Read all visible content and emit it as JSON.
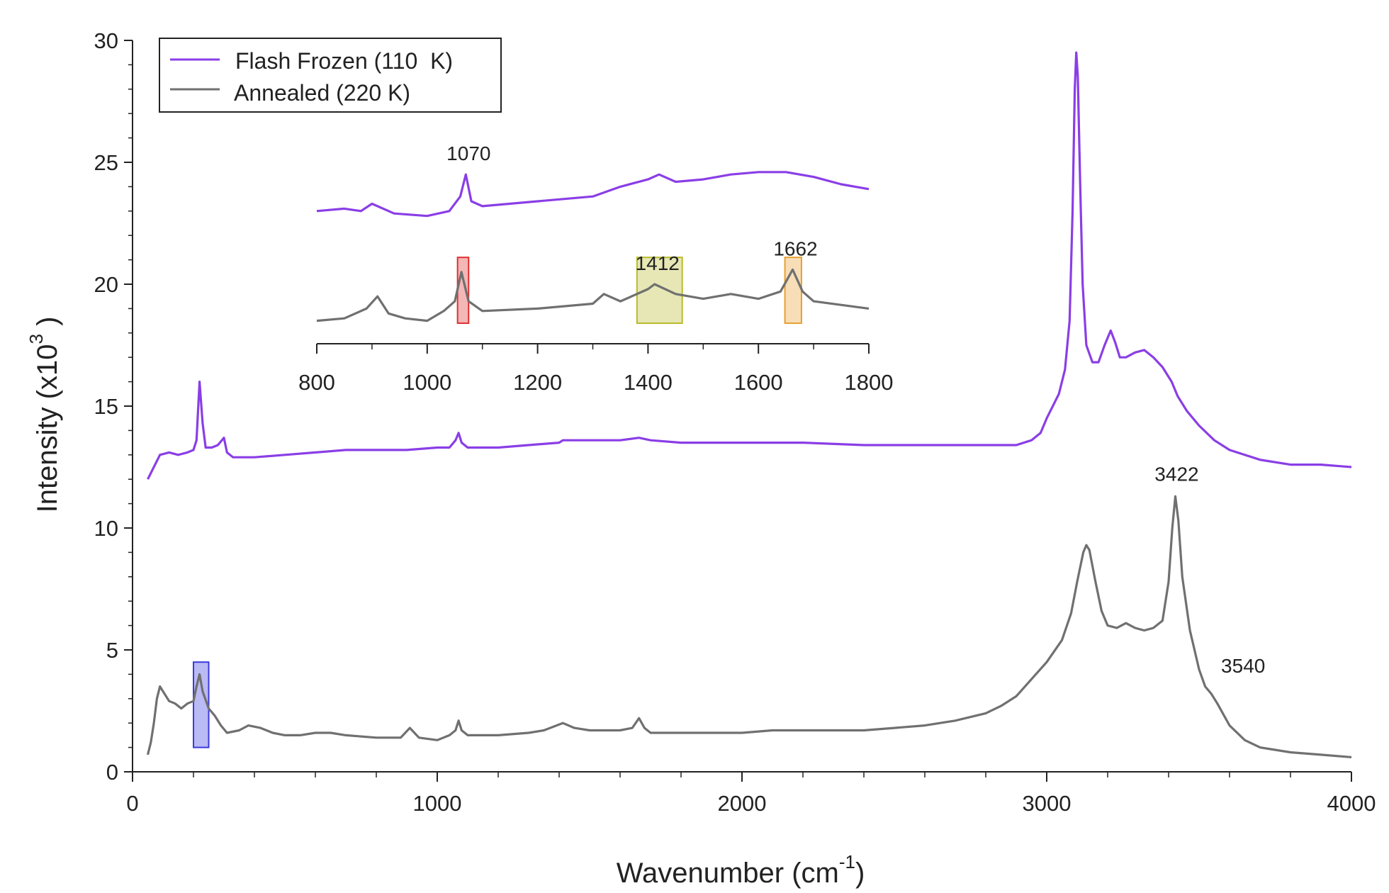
{
  "chart_data": {
    "type": "line",
    "title": "",
    "xlabel": "Wavenumber (cm",
    "xlabel_sup": "-1",
    "xlabel_close": ")",
    "ylabel": "Intensity (x10",
    "ylabel_sup": "3",
    "ylabel_close": " )",
    "xlim": [
      0,
      4000
    ],
    "ylim": [
      0,
      30
    ],
    "x_ticks": [
      0,
      1000,
      2000,
      3000,
      4000
    ],
    "x_tick_labels": [
      "0",
      "1000",
      "2000",
      "3000",
      "4000"
    ],
    "y_ticks": [
      0,
      5,
      10,
      15,
      20,
      25,
      30
    ],
    "y_tick_labels": [
      "0",
      "5",
      "10",
      "15",
      "20",
      "25",
      "30"
    ],
    "grid": false,
    "legend_position": "top-left",
    "series": [
      {
        "name": "Flash Frozen (110  K)",
        "color": "#8a3ee6",
        "points": [
          [
            50,
            12.0
          ],
          [
            70,
            12.5
          ],
          [
            90,
            13.0
          ],
          [
            120,
            13.1
          ],
          [
            150,
            13.0
          ],
          [
            180,
            13.1
          ],
          [
            200,
            13.2
          ],
          [
            210,
            13.6
          ],
          [
            220,
            16.0
          ],
          [
            230,
            14.3
          ],
          [
            240,
            13.3
          ],
          [
            260,
            13.3
          ],
          [
            280,
            13.4
          ],
          [
            300,
            13.7
          ],
          [
            310,
            13.1
          ],
          [
            330,
            12.9
          ],
          [
            400,
            12.9
          ],
          [
            500,
            13.0
          ],
          [
            600,
            13.1
          ],
          [
            700,
            13.2
          ],
          [
            800,
            13.2
          ],
          [
            900,
            13.2
          ],
          [
            1000,
            13.3
          ],
          [
            1040,
            13.3
          ],
          [
            1060,
            13.6
          ],
          [
            1070,
            13.9
          ],
          [
            1080,
            13.5
          ],
          [
            1100,
            13.3
          ],
          [
            1200,
            13.3
          ],
          [
            1300,
            13.4
          ],
          [
            1400,
            13.5
          ],
          [
            1412,
            13.6
          ],
          [
            1450,
            13.6
          ],
          [
            1500,
            13.6
          ],
          [
            1600,
            13.6
          ],
          [
            1662,
            13.7
          ],
          [
            1700,
            13.6
          ],
          [
            1800,
            13.5
          ],
          [
            2000,
            13.5
          ],
          [
            2200,
            13.5
          ],
          [
            2400,
            13.4
          ],
          [
            2600,
            13.4
          ],
          [
            2800,
            13.4
          ],
          [
            2900,
            13.4
          ],
          [
            2950,
            13.6
          ],
          [
            2980,
            13.9
          ],
          [
            3000,
            14.5
          ],
          [
            3020,
            15.0
          ],
          [
            3040,
            15.5
          ],
          [
            3060,
            16.5
          ],
          [
            3075,
            18.5
          ],
          [
            3085,
            23.0
          ],
          [
            3092,
            28.0
          ],
          [
            3097,
            29.5
          ],
          [
            3102,
            28.5
          ],
          [
            3110,
            24.0
          ],
          [
            3118,
            20.0
          ],
          [
            3130,
            17.5
          ],
          [
            3150,
            16.8
          ],
          [
            3170,
            16.8
          ],
          [
            3190,
            17.5
          ],
          [
            3210,
            18.1
          ],
          [
            3225,
            17.6
          ],
          [
            3240,
            17.0
          ],
          [
            3260,
            17.0
          ],
          [
            3290,
            17.2
          ],
          [
            3320,
            17.3
          ],
          [
            3350,
            17.0
          ],
          [
            3380,
            16.6
          ],
          [
            3410,
            16.0
          ],
          [
            3430,
            15.4
          ],
          [
            3460,
            14.8
          ],
          [
            3500,
            14.2
          ],
          [
            3550,
            13.6
          ],
          [
            3600,
            13.2
          ],
          [
            3700,
            12.8
          ],
          [
            3800,
            12.6
          ],
          [
            3900,
            12.6
          ],
          [
            4000,
            12.5
          ]
        ]
      },
      {
        "name": "Annealed (220 K)",
        "color": "#707070",
        "points": [
          [
            50,
            0.7
          ],
          [
            60,
            1.2
          ],
          [
            70,
            2.0
          ],
          [
            80,
            3.0
          ],
          [
            90,
            3.5
          ],
          [
            100,
            3.3
          ],
          [
            120,
            2.9
          ],
          [
            140,
            2.8
          ],
          [
            160,
            2.6
          ],
          [
            180,
            2.8
          ],
          [
            200,
            2.9
          ],
          [
            210,
            3.5
          ],
          [
            220,
            4.0
          ],
          [
            230,
            3.3
          ],
          [
            250,
            2.6
          ],
          [
            270,
            2.3
          ],
          [
            290,
            1.9
          ],
          [
            310,
            1.6
          ],
          [
            350,
            1.7
          ],
          [
            380,
            1.9
          ],
          [
            420,
            1.8
          ],
          [
            460,
            1.6
          ],
          [
            500,
            1.5
          ],
          [
            550,
            1.5
          ],
          [
            600,
            1.6
          ],
          [
            650,
            1.6
          ],
          [
            700,
            1.5
          ],
          [
            800,
            1.4
          ],
          [
            880,
            1.4
          ],
          [
            910,
            1.8
          ],
          [
            940,
            1.4
          ],
          [
            1000,
            1.3
          ],
          [
            1040,
            1.5
          ],
          [
            1060,
            1.7
          ],
          [
            1070,
            2.1
          ],
          [
            1080,
            1.7
          ],
          [
            1100,
            1.5
          ],
          [
            1200,
            1.5
          ],
          [
            1300,
            1.6
          ],
          [
            1350,
            1.7
          ],
          [
            1412,
            2.0
          ],
          [
            1450,
            1.8
          ],
          [
            1500,
            1.7
          ],
          [
            1600,
            1.7
          ],
          [
            1640,
            1.8
          ],
          [
            1662,
            2.2
          ],
          [
            1680,
            1.8
          ],
          [
            1700,
            1.6
          ],
          [
            1800,
            1.6
          ],
          [
            1900,
            1.6
          ],
          [
            2000,
            1.6
          ],
          [
            2100,
            1.7
          ],
          [
            2200,
            1.7
          ],
          [
            2300,
            1.7
          ],
          [
            2400,
            1.7
          ],
          [
            2500,
            1.8
          ],
          [
            2600,
            1.9
          ],
          [
            2700,
            2.1
          ],
          [
            2800,
            2.4
          ],
          [
            2850,
            2.7
          ],
          [
            2900,
            3.1
          ],
          [
            2950,
            3.8
          ],
          [
            3000,
            4.5
          ],
          [
            3050,
            5.4
          ],
          [
            3080,
            6.5
          ],
          [
            3100,
            7.8
          ],
          [
            3120,
            9.0
          ],
          [
            3130,
            9.3
          ],
          [
            3140,
            9.1
          ],
          [
            3160,
            7.8
          ],
          [
            3180,
            6.6
          ],
          [
            3200,
            6.0
          ],
          [
            3230,
            5.9
          ],
          [
            3260,
            6.1
          ],
          [
            3290,
            5.9
          ],
          [
            3320,
            5.8
          ],
          [
            3350,
            5.9
          ],
          [
            3380,
            6.2
          ],
          [
            3400,
            7.8
          ],
          [
            3412,
            10.0
          ],
          [
            3422,
            11.3
          ],
          [
            3432,
            10.3
          ],
          [
            3445,
            8.0
          ],
          [
            3470,
            5.8
          ],
          [
            3500,
            4.2
          ],
          [
            3520,
            3.5
          ],
          [
            3540,
            3.2
          ],
          [
            3560,
            2.8
          ],
          [
            3600,
            1.9
          ],
          [
            3650,
            1.3
          ],
          [
            3700,
            1.0
          ],
          [
            3800,
            0.8
          ],
          [
            3900,
            0.7
          ],
          [
            4000,
            0.6
          ]
        ]
      }
    ],
    "annotations": [
      {
        "text": "3422",
        "x": 3422,
        "y": 11.3
      },
      {
        "text": "3540",
        "x": 3540,
        "y": 3.2
      }
    ],
    "highlight_boxes": [
      {
        "x_from": 200,
        "x_to": 250,
        "y_from": 1.0,
        "y_to": 4.5,
        "color": "#3a3ae0"
      }
    ],
    "inset": {
      "xlim": [
        800,
        1800
      ],
      "x_ticks": [
        800,
        1000,
        1200,
        1400,
        1600,
        1800
      ],
      "x_tick_labels": [
        "800",
        "1000",
        "1200",
        "1400",
        "1600",
        "1800"
      ],
      "series": [
        {
          "name": "Flash Frozen (110  K)",
          "color": "#8a3ee6",
          "points": [
            [
              800,
              23.0
            ],
            [
              850,
              23.1
            ],
            [
              880,
              23.0
            ],
            [
              900,
              23.3
            ],
            [
              910,
              23.2
            ],
            [
              940,
              22.9
            ],
            [
              1000,
              22.8
            ],
            [
              1040,
              23.0
            ],
            [
              1060,
              23.6
            ],
            [
              1070,
              24.5
            ],
            [
              1080,
              23.4
            ],
            [
              1100,
              23.2
            ],
            [
              1200,
              23.4
            ],
            [
              1300,
              23.6
            ],
            [
              1350,
              24.0
            ],
            [
              1400,
              24.3
            ],
            [
              1420,
              24.5
            ],
            [
              1450,
              24.2
            ],
            [
              1500,
              24.3
            ],
            [
              1550,
              24.5
            ],
            [
              1600,
              24.6
            ],
            [
              1650,
              24.6
            ],
            [
              1700,
              24.4
            ],
            [
              1750,
              24.1
            ],
            [
              1800,
              23.9
            ]
          ]
        },
        {
          "name": "Annealed (220 K)",
          "color": "#707070",
          "points": [
            [
              800,
              18.5
            ],
            [
              850,
              18.6
            ],
            [
              890,
              19.0
            ],
            [
              910,
              19.5
            ],
            [
              930,
              18.8
            ],
            [
              960,
              18.6
            ],
            [
              1000,
              18.5
            ],
            [
              1030,
              18.9
            ],
            [
              1050,
              19.3
            ],
            [
              1062,
              20.5
            ],
            [
              1075,
              19.3
            ],
            [
              1100,
              18.9
            ],
            [
              1200,
              19.0
            ],
            [
              1300,
              19.2
            ],
            [
              1320,
              19.6
            ],
            [
              1350,
              19.3
            ],
            [
              1400,
              19.8
            ],
            [
              1412,
              20.0
            ],
            [
              1450,
              19.6
            ],
            [
              1500,
              19.4
            ],
            [
              1550,
              19.6
            ],
            [
              1600,
              19.4
            ],
            [
              1640,
              19.7
            ],
            [
              1662,
              20.6
            ],
            [
              1680,
              19.7
            ],
            [
              1700,
              19.3
            ],
            [
              1800,
              19.0
            ]
          ]
        }
      ],
      "annotations": [
        {
          "text": "1070",
          "x": 1070,
          "y": 24.5
        },
        {
          "text": "1412",
          "x": 1412,
          "y": 20.0
        },
        {
          "text": "1662",
          "x": 1662,
          "y": 20.6
        }
      ],
      "highlight_boxes": [
        {
          "x_from": 1055,
          "x_to": 1075,
          "y_from": 18.4,
          "y_to": 21.1,
          "color": "#e03030"
        },
        {
          "x_from": 1380,
          "x_to": 1462,
          "y_from": 18.4,
          "y_to": 21.1,
          "color": "#b8bb2a"
        },
        {
          "x_from": 1648,
          "x_to": 1678,
          "y_from": 18.4,
          "y_to": 21.1,
          "color": "#e8a030"
        }
      ]
    }
  }
}
